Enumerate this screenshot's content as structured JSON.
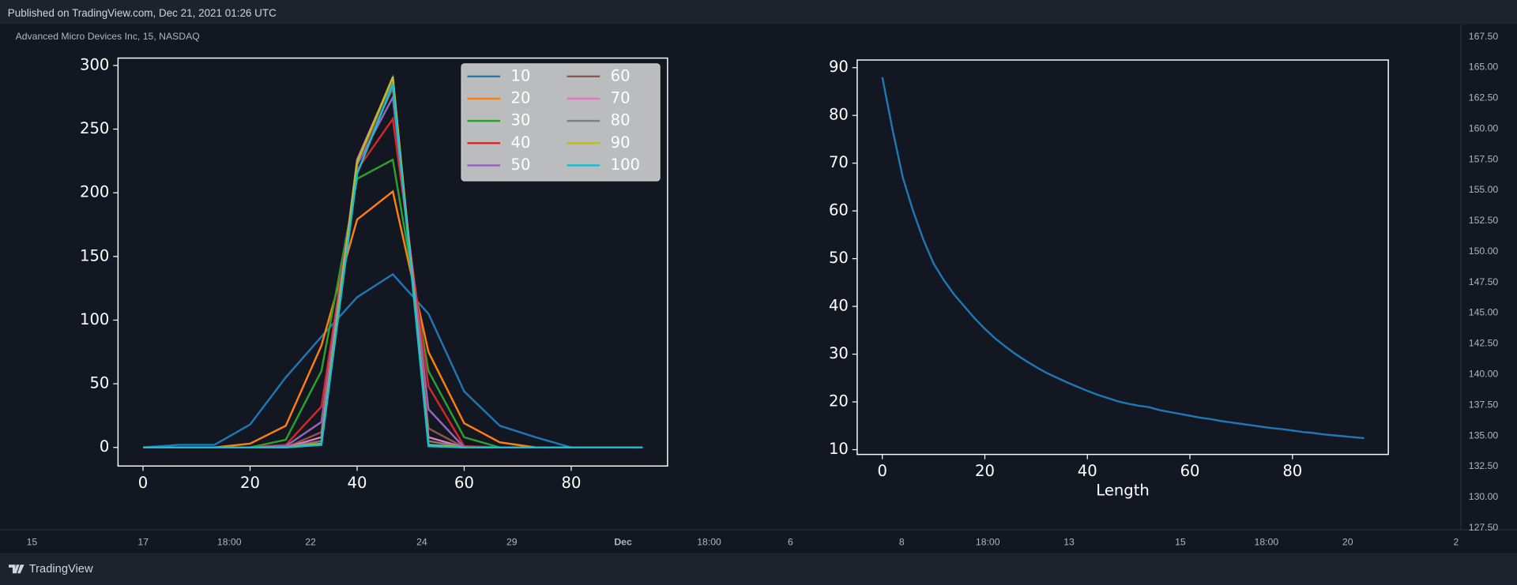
{
  "header": {
    "published": "Published on TradingView.com, Dec 21, 2021 01:26 UTC",
    "symbol": "Advanced Micro Devices Inc, 15, NASDAQ"
  },
  "price_axis": {
    "labels": [
      "167.50",
      "165.00",
      "162.50",
      "160.00",
      "157.50",
      "155.00",
      "152.50",
      "150.00",
      "147.50",
      "145.00",
      "142.50",
      "140.00",
      "137.50",
      "135.00",
      "132.50",
      "130.00",
      "127.50"
    ]
  },
  "time_axis": {
    "labels": [
      "15",
      "17",
      "18:00",
      "22",
      "24",
      "29",
      "Dec",
      "18:00",
      "6",
      "8",
      "18:00",
      "13",
      "15",
      "18:00",
      "20",
      "2"
    ]
  },
  "footer": {
    "brand": "TradingView"
  },
  "chart_data": [
    {
      "type": "line",
      "x": [
        0,
        6.67,
        13.33,
        20,
        26.67,
        33.33,
        40,
        46.67,
        53.33,
        60,
        66.67,
        73.33,
        80,
        86.67,
        93.33
      ],
      "series": [
        {
          "name": "10",
          "color": "#1f77b4",
          "values": [
            0,
            2,
            2,
            18,
            55,
            87,
            118,
            136,
            105,
            44,
            17,
            8,
            0,
            0,
            0
          ]
        },
        {
          "name": "20",
          "color": "#ff7f0e",
          "values": [
            0,
            0,
            0,
            3,
            17,
            80,
            179,
            201,
            75,
            19,
            4,
            0,
            0,
            0,
            0
          ]
        },
        {
          "name": "30",
          "color": "#2ca02c",
          "values": [
            0,
            0,
            0,
            0,
            6,
            60,
            211,
            226,
            60,
            8,
            0,
            0,
            0,
            0,
            0
          ]
        },
        {
          "name": "40",
          "color": "#d62728",
          "values": [
            0,
            0,
            0,
            0,
            2,
            32,
            218,
            258,
            48,
            1,
            0,
            0,
            0,
            0,
            0
          ]
        },
        {
          "name": "50",
          "color": "#9467bd",
          "values": [
            0,
            0,
            0,
            0,
            1,
            20,
            222,
            275,
            30,
            0,
            0,
            0,
            0,
            0,
            0
          ]
        },
        {
          "name": "60",
          "color": "#8c564b",
          "values": [
            0,
            0,
            0,
            0,
            0,
            12,
            224,
            282,
            15,
            0,
            0,
            0,
            0,
            0,
            0
          ]
        },
        {
          "name": "70",
          "color": "#e377c2",
          "values": [
            0,
            0,
            0,
            0,
            0,
            8,
            226,
            290,
            8,
            0,
            0,
            0,
            0,
            0,
            0
          ]
        },
        {
          "name": "80",
          "color": "#7f7f7f",
          "values": [
            0,
            0,
            0,
            0,
            0,
            5,
            225,
            288,
            5,
            0,
            0,
            0,
            0,
            0,
            0
          ]
        },
        {
          "name": "90",
          "color": "#bcbd22",
          "values": [
            0,
            0,
            0,
            0,
            0,
            3,
            224,
            291,
            2,
            0,
            0,
            0,
            0,
            0,
            0
          ]
        },
        {
          "name": "100",
          "color": "#17becf",
          "values": [
            0,
            0,
            0,
            0,
            0,
            2,
            215,
            285,
            1,
            0,
            0,
            0,
            0,
            0,
            0
          ]
        }
      ],
      "xlim": [
        -4.67,
        98
      ],
      "ylim": [
        -14.6,
        305.8
      ],
      "xticks": [
        0,
        20,
        40,
        60,
        80
      ],
      "yticks": [
        0,
        50,
        100,
        150,
        200,
        250,
        300
      ],
      "legend": "upper right",
      "legend_columns": 2
    },
    {
      "type": "line",
      "xlabel": "Length",
      "x": [
        0,
        2,
        4,
        6,
        8,
        10,
        12,
        14,
        16,
        18,
        20,
        22,
        24,
        26,
        28,
        30,
        32,
        34,
        36,
        38,
        40,
        42,
        44,
        46,
        48,
        50,
        52,
        54,
        56,
        58,
        60,
        62,
        64,
        66,
        68,
        70,
        72,
        74,
        76,
        78,
        80,
        82,
        84,
        86,
        88,
        90,
        92,
        94
      ],
      "series": [
        {
          "color": "#1f77b4",
          "values": [
            88,
            77,
            67,
            60,
            54,
            49,
            45.5,
            42.5,
            40,
            37.5,
            35.3,
            33.3,
            31.6,
            30,
            28.6,
            27.3,
            26.1,
            25.1,
            24.1,
            23.2,
            22.3,
            21.5,
            20.8,
            20.1,
            19.6,
            19.2,
            18.9,
            18.3,
            17.9,
            17.5,
            17.1,
            16.7,
            16.4,
            16,
            15.7,
            15.4,
            15.1,
            14.8,
            14.5,
            14.3,
            14,
            13.7,
            13.5,
            13.2,
            13,
            12.8,
            12.6,
            12.4
          ]
        }
      ],
      "xlim": [
        -4.9,
        98.7
      ],
      "ylim": [
        9.0,
        91.6
      ],
      "xticks": [
        0,
        20,
        40,
        60,
        80
      ],
      "yticks": [
        10,
        20,
        30,
        40,
        50,
        60,
        70,
        80,
        90
      ]
    }
  ]
}
